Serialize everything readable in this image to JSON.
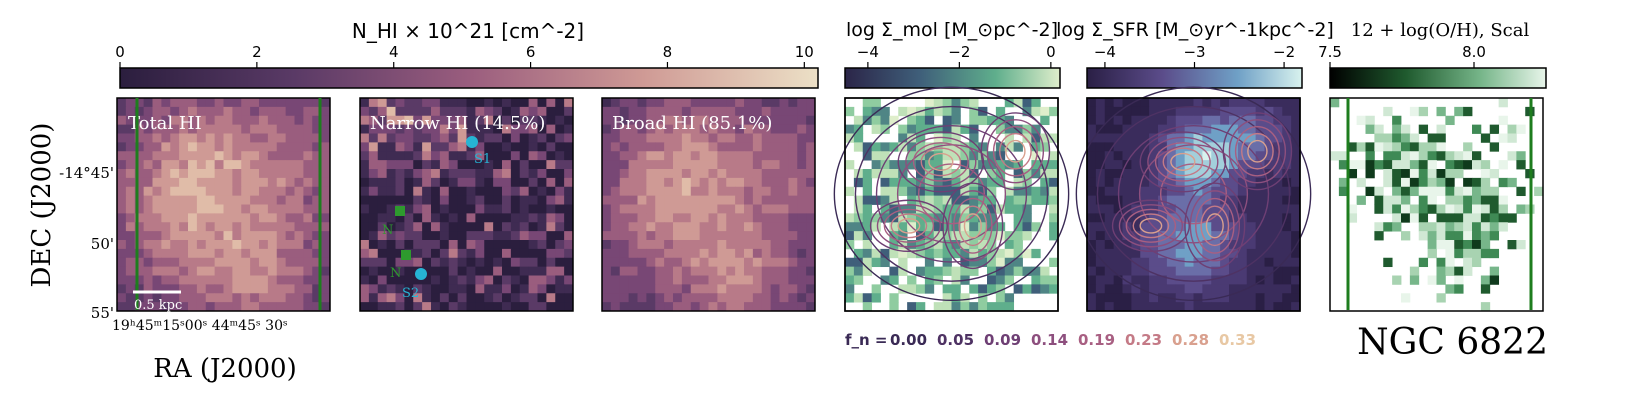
{
  "figure": {
    "colorbars": [
      {
        "label": "N_HI × 10^21 [cm^-2]",
        "ticks": [
          "0",
          "2",
          "4",
          "6",
          "8",
          "10"
        ],
        "range": [
          0,
          10.2
        ],
        "cmap": "pink"
      },
      {
        "label": "log Σ_mol [M_⊙pc^-2]",
        "ticks": [
          "−4",
          "−2",
          "0"
        ],
        "range": [
          -4.5,
          0.2
        ],
        "cmap": "teal"
      },
      {
        "label": "log Σ_SFR [M_⊙yr^-1kpc^-2]",
        "ticks": [
          "−4",
          "−3",
          "−2"
        ],
        "range": [
          -4.2,
          -1.8
        ],
        "cmap": "blue"
      },
      {
        "label": "12 + log(O/H), Scal",
        "ticks": [
          "7.5",
          "8.0"
        ],
        "range": [
          7.5,
          8.25
        ],
        "cmap": "green"
      }
    ],
    "panel_titles": {
      "total": "Total HI",
      "narrow": "Narrow HI (14.5%)",
      "broad": "Broad HI (85.1%)"
    },
    "axes": {
      "ylabel": "DEC (J2000)",
      "xlabel": "RA (J2000)",
      "yticks": [
        "-14°45'",
        "50'",
        "55'"
      ],
      "xtick_text": "19ʰ45ᵐ15ˢ00ˢ   44ᵐ45ˢ   30ˢ",
      "scale_bar": "0.5 kpc"
    },
    "markers": {
      "S1": "S1",
      "S2": "S2",
      "N1": "N",
      "N2": "N"
    },
    "contour_legend": {
      "prefix": "f_n =",
      "levels": [
        "0.00",
        "0.05",
        "0.09",
        "0.14",
        "0.19",
        "0.23",
        "0.28",
        "0.33"
      ],
      "colors": [
        "#3a2a55",
        "#4e3263",
        "#6e3f74",
        "#8d4f7e",
        "#a85f82",
        "#c47a86",
        "#d9a08e",
        "#e8c8a4"
      ]
    },
    "galaxy_name": "NGC 6822",
    "colors": {
      "frame_green": "#1e7d1e",
      "marker_cyan": "#26b4d4",
      "marker_green": "#2e9a2e"
    }
  },
  "chart_data": [
    {
      "type": "heatmap",
      "title": "Total HI",
      "quantity": "N_HI × 10^21 [cm^-2]",
      "grid": "32x32 pixel map",
      "range": [
        0,
        10.2
      ],
      "notes": "Diffuse emission with peak near lower-center; estimated visually"
    },
    {
      "type": "heatmap",
      "title": "Narrow HI (14.5%)",
      "fraction_percent": 14.5,
      "range": [
        0,
        10.2
      ]
    },
    {
      "type": "heatmap",
      "title": "Broad HI (85.1%)",
      "fraction_percent": 85.1,
      "range": [
        0,
        10.2
      ]
    },
    {
      "type": "heatmap",
      "title": "log Σ_mol with f_n contours",
      "range": [
        -4.5,
        0.2
      ],
      "contour_levels": [
        0.0,
        0.05,
        0.09,
        0.14,
        0.19,
        0.23,
        0.28,
        0.33
      ]
    },
    {
      "type": "heatmap",
      "title": "log Σ_SFR with f_n contours",
      "range": [
        -4.2,
        -1.8
      ]
    },
    {
      "type": "heatmap",
      "title": "12 + log(O/H), Scal",
      "range": [
        7.5,
        8.25
      ]
    }
  ]
}
